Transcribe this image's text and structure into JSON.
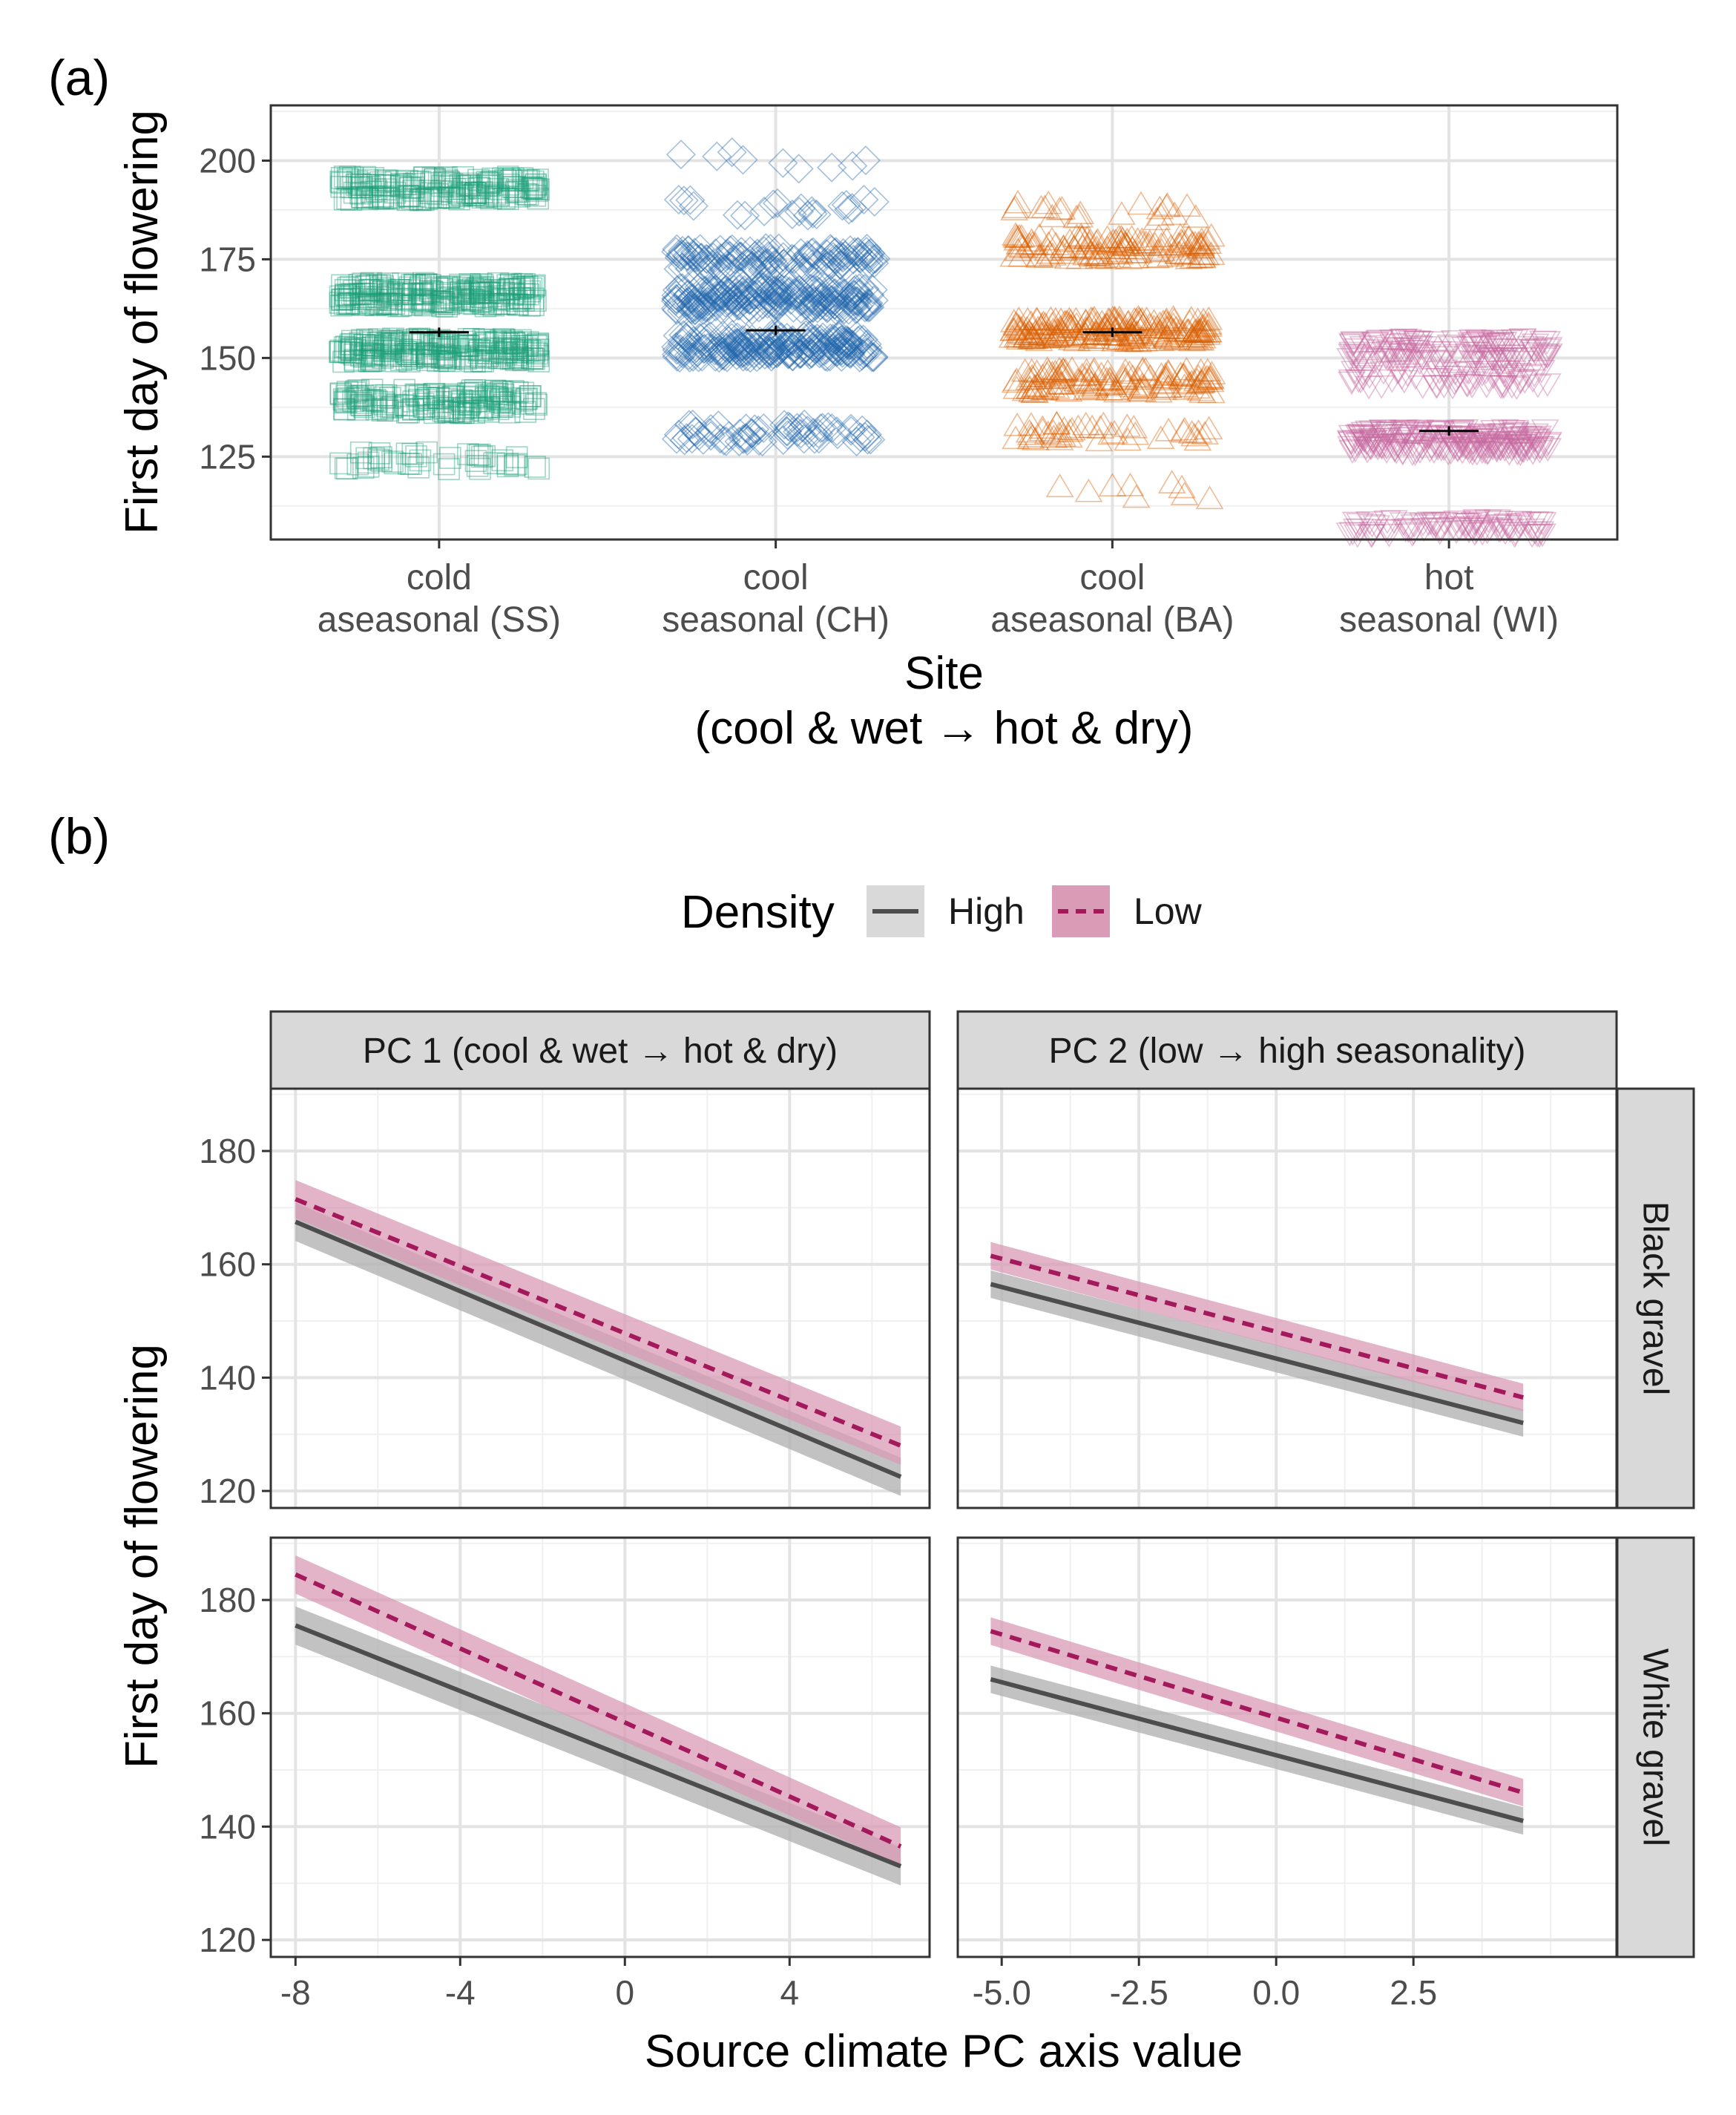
{
  "chart_data": [
    {
      "panel_label": "(a)",
      "type": "scatter",
      "categories": [
        "cold\naseasonal (SS)",
        "cool\nseasonal (CH)",
        "cool\naseasonal (BA)",
        "hot\nseasonal (WI)"
      ],
      "xlabel": "Site\n(cool & wet → hot & dry)",
      "ylabel": "First day of flowering",
      "ylim": [
        104,
        214
      ],
      "yticks": [
        125,
        150,
        175,
        200
      ],
      "grid": true,
      "series": [
        {
          "category": "cold\naseasonal (SS)",
          "color": "#1B9E77",
          "marker": "square",
          "clusters": [
            {
              "y": 193,
              "weight": 8
            },
            {
              "y": 166,
              "weight": 10
            },
            {
              "y": 152,
              "weight": 10
            },
            {
              "y": 139,
              "weight": 7
            },
            {
              "y": 124,
              "weight": 2
            }
          ],
          "mean": 156.5,
          "se": 1.2
        },
        {
          "category": "cool\nseasonal (CH)",
          "color": "#2166AC",
          "marker": "diamond",
          "clusters": [
            {
              "y": 200,
              "weight": 0.4
            },
            {
              "y": 188,
              "weight": 1
            },
            {
              "y": 175,
              "weight": 6
            },
            {
              "y": 165,
              "weight": 10
            },
            {
              "y": 153,
              "weight": 10
            },
            {
              "y": 131,
              "weight": 3
            }
          ],
          "mean": 157,
          "se": 1.2
        },
        {
          "category": "cool\naseasonal (BA)",
          "color": "#D95F02",
          "marker": "triangle-up",
          "clusters": [
            {
              "y": 187,
              "weight": 1
            },
            {
              "y": 178,
              "weight": 6
            },
            {
              "y": 157,
              "weight": 10
            },
            {
              "y": 144,
              "weight": 6
            },
            {
              "y": 131,
              "weight": 2
            },
            {
              "y": 116,
              "weight": 0.4
            }
          ],
          "mean": 156.5,
          "se": 1.2
        },
        {
          "category": "hot\nseasonal (WI)",
          "color": "#C5689F",
          "marker": "triangle-down",
          "clusters": [
            {
              "y": 152,
              "weight": 6
            },
            {
              "y": 145,
              "weight": 3
            },
            {
              "y": 129,
              "weight": 10
            },
            {
              "y": 107,
              "weight": 4
            }
          ],
          "mean": 131.5,
          "se": 1.2
        }
      ]
    },
    {
      "panel_label": "(b)",
      "type": "line",
      "legend": {
        "title": "Density",
        "position": "top",
        "entries": [
          {
            "name": "High",
            "color": "#4D4D4D",
            "band": "#B3B3B3",
            "dash": "solid"
          },
          {
            "name": "Low",
            "color": "#A3195B",
            "band": "#D99BB5",
            "dash": "dashed"
          }
        ]
      },
      "xlabel": "Source climate PC axis value",
      "ylabel": "First day of flowering",
      "ylim": [
        117,
        191
      ],
      "yticks": [
        120,
        140,
        160,
        180
      ],
      "col_facets": [
        {
          "strip": "PC 1 (cool & wet → hot & dry)",
          "xlim": [
            -8.6,
            7.4
          ],
          "xticks": [
            -8,
            -4,
            0,
            4
          ],
          "xtick_labels": [
            "-8",
            "-4",
            "0",
            "4"
          ],
          "x_range": [
            -8,
            6.7
          ]
        },
        {
          "strip": "PC 2 (low → high seasonality)",
          "xlim": [
            -5.8,
            6.2
          ],
          "xticks": [
            -5,
            -2.5,
            0,
            2.5
          ],
          "xtick_labels": [
            "-5.0",
            "-2.5",
            "0.0",
            "2.5"
          ],
          "x_range": [
            -5.2,
            4.5
          ]
        }
      ],
      "row_facets": [
        "Black gravel",
        "White gravel"
      ],
      "lines": [
        {
          "row": 0,
          "col": 0,
          "series": "High",
          "y0": 167.5,
          "y1": 122.5,
          "ci": 2.5
        },
        {
          "row": 0,
          "col": 0,
          "series": "Low",
          "y0": 171.5,
          "y1": 128,
          "ci": 2.5
        },
        {
          "row": 0,
          "col": 1,
          "series": "High",
          "y0": 156.5,
          "y1": 132,
          "ci": 1.8
        },
        {
          "row": 0,
          "col": 1,
          "series": "Low",
          "y0": 161.5,
          "y1": 136.5,
          "ci": 1.8
        },
        {
          "row": 1,
          "col": 0,
          "series": "High",
          "y0": 175.5,
          "y1": 133,
          "ci": 2.5
        },
        {
          "row": 1,
          "col": 0,
          "series": "Low",
          "y0": 184.5,
          "y1": 136.5,
          "ci": 2.5
        },
        {
          "row": 1,
          "col": 1,
          "series": "High",
          "y0": 166,
          "y1": 141,
          "ci": 1.8
        },
        {
          "row": 1,
          "col": 1,
          "series": "Low",
          "y0": 174.5,
          "y1": 146,
          "ci": 1.8
        }
      ]
    }
  ]
}
